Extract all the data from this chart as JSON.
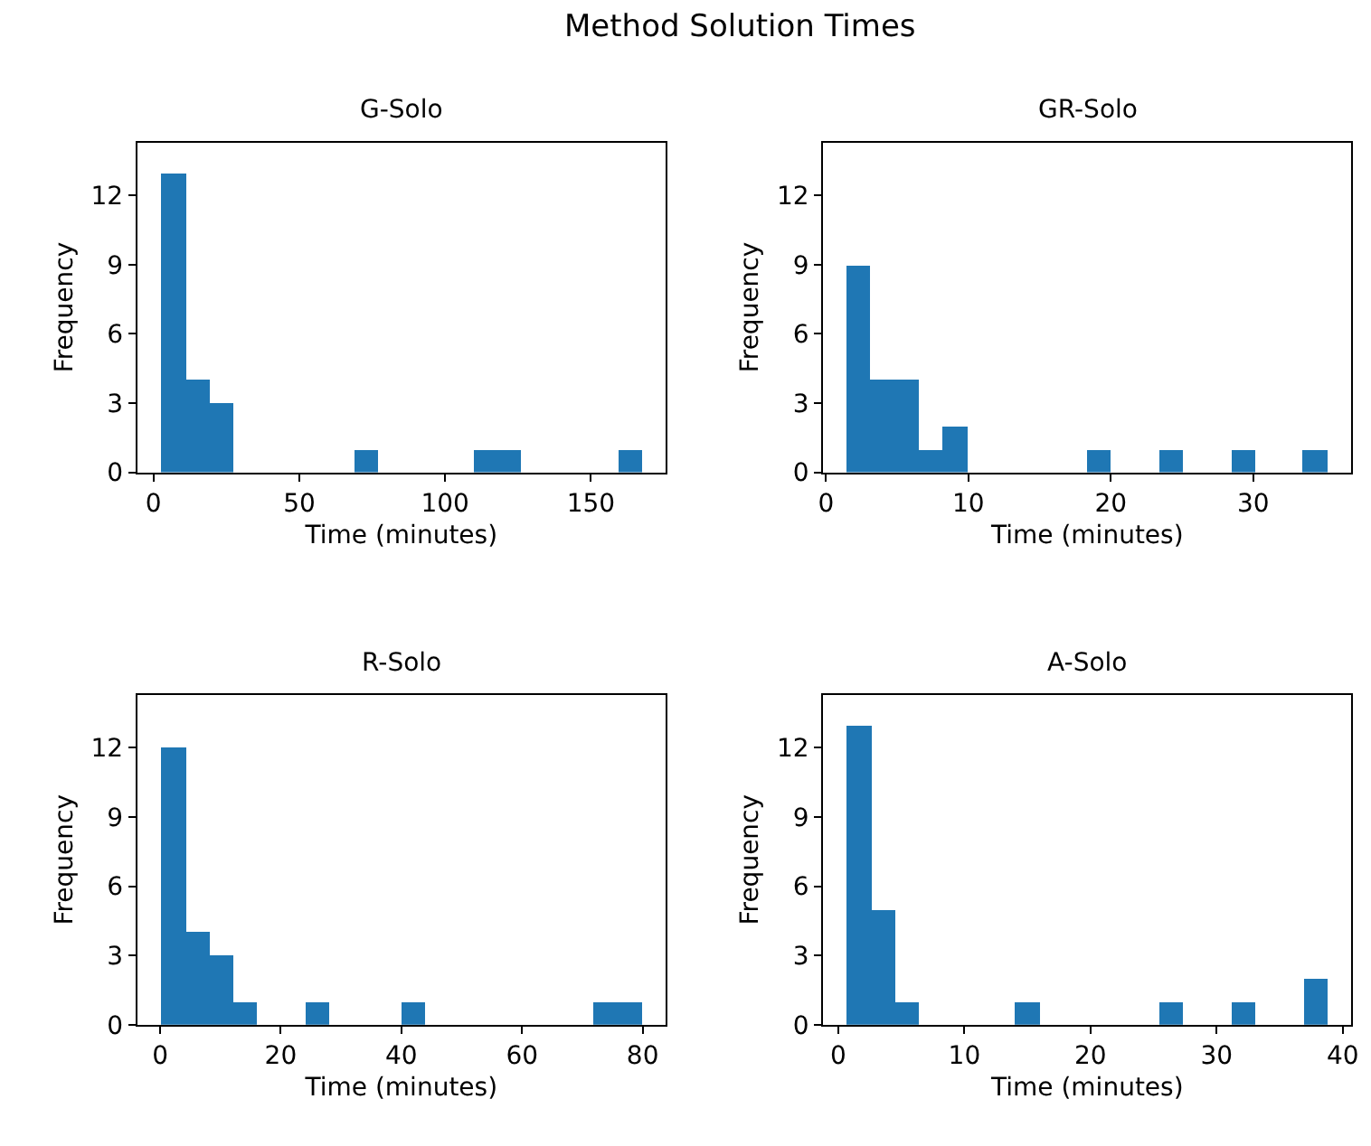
{
  "chart_data": [
    {
      "type": "histogram",
      "title": "G-Solo",
      "xlabel": "Time (minutes)",
      "ylabel": "Frequency",
      "annotations": [
        "Method Solution Times"
      ],
      "color": "#1f77b4",
      "bins": [
        2.6,
        10.84,
        19.08,
        27.32,
        35.56,
        43.8,
        52.04,
        60.28,
        68.52,
        76.76,
        85.0,
        93.24,
        101.48,
        109.72,
        117.96,
        126.2,
        134.44,
        142.68,
        150.92,
        159.16,
        167.4
      ],
      "values": [
        13,
        4,
        3,
        0,
        0,
        0,
        0,
        0,
        1,
        0,
        0,
        0,
        0,
        1,
        1,
        0,
        0,
        0,
        0,
        1
      ],
      "xlim": [
        -5.6,
        175.6
      ],
      "xticks": [
        0,
        50,
        100,
        150
      ],
      "ylim": [
        0,
        14.3
      ],
      "yticks": [
        0,
        3,
        6,
        9,
        12
      ]
    },
    {
      "type": "histogram",
      "title": "GR-Solo",
      "xlabel": "Time (minutes)",
      "ylabel": "Frequency",
      "color": "#1f77b4",
      "bins": [
        1.47,
        3.156,
        4.842,
        6.528,
        8.214,
        9.9,
        11.586,
        13.272,
        14.958,
        16.644,
        18.33,
        20.016,
        21.702,
        23.388,
        25.074,
        26.76,
        28.446,
        30.132,
        31.818,
        33.504,
        35.19
      ],
      "values": [
        9,
        4,
        4,
        1,
        2,
        0,
        0,
        0,
        0,
        0,
        1,
        0,
        0,
        1,
        0,
        0,
        1,
        0,
        0,
        1
      ],
      "xlim": [
        -0.2,
        36.9
      ],
      "xticks": [
        0,
        10,
        20,
        30
      ],
      "ylim": [
        0,
        14.3
      ],
      "yticks": [
        0,
        3,
        6,
        9,
        12
      ]
    },
    {
      "type": "histogram",
      "title": "R-Solo",
      "xlabel": "Time (minutes)",
      "ylabel": "Frequency",
      "color": "#1f77b4",
      "bins": [
        0.2,
        4.18,
        8.16,
        12.14,
        16.12,
        20.1,
        24.08,
        28.06,
        32.04,
        36.02,
        40.0,
        43.98,
        47.96,
        51.94,
        55.92,
        59.9,
        63.88,
        67.86,
        71.84,
        75.82,
        79.8
      ],
      "values": [
        12,
        4,
        3,
        1,
        0,
        0,
        1,
        0,
        0,
        0,
        1,
        0,
        0,
        0,
        0,
        0,
        0,
        0,
        1,
        1
      ],
      "xlim": [
        -3.8,
        83.8
      ],
      "xticks": [
        0,
        20,
        40,
        60,
        80
      ],
      "ylim": [
        0,
        14.3
      ],
      "yticks": [
        0,
        3,
        6,
        9,
        12
      ]
    },
    {
      "type": "histogram",
      "title": "A-Solo",
      "xlabel": "Time (minutes)",
      "ylabel": "Frequency",
      "color": "#1f77b4",
      "bins": [
        0.71,
        2.615,
        4.52,
        6.425,
        8.33,
        10.235,
        12.14,
        14.045,
        15.95,
        17.855,
        19.76,
        21.665,
        23.57,
        25.475,
        27.38,
        29.285,
        31.19,
        33.095,
        35.0,
        36.905,
        38.81
      ],
      "values": [
        13,
        5,
        1,
        0,
        0,
        0,
        0,
        1,
        0,
        0,
        0,
        0,
        0,
        1,
        0,
        0,
        1,
        0,
        0,
        2
      ],
      "xlim": [
        -1.2,
        40.7
      ],
      "xticks": [
        0,
        10,
        20,
        30,
        40
      ],
      "ylim": [
        0,
        14.3
      ],
      "yticks": [
        0,
        3,
        6,
        9,
        12
      ]
    }
  ]
}
